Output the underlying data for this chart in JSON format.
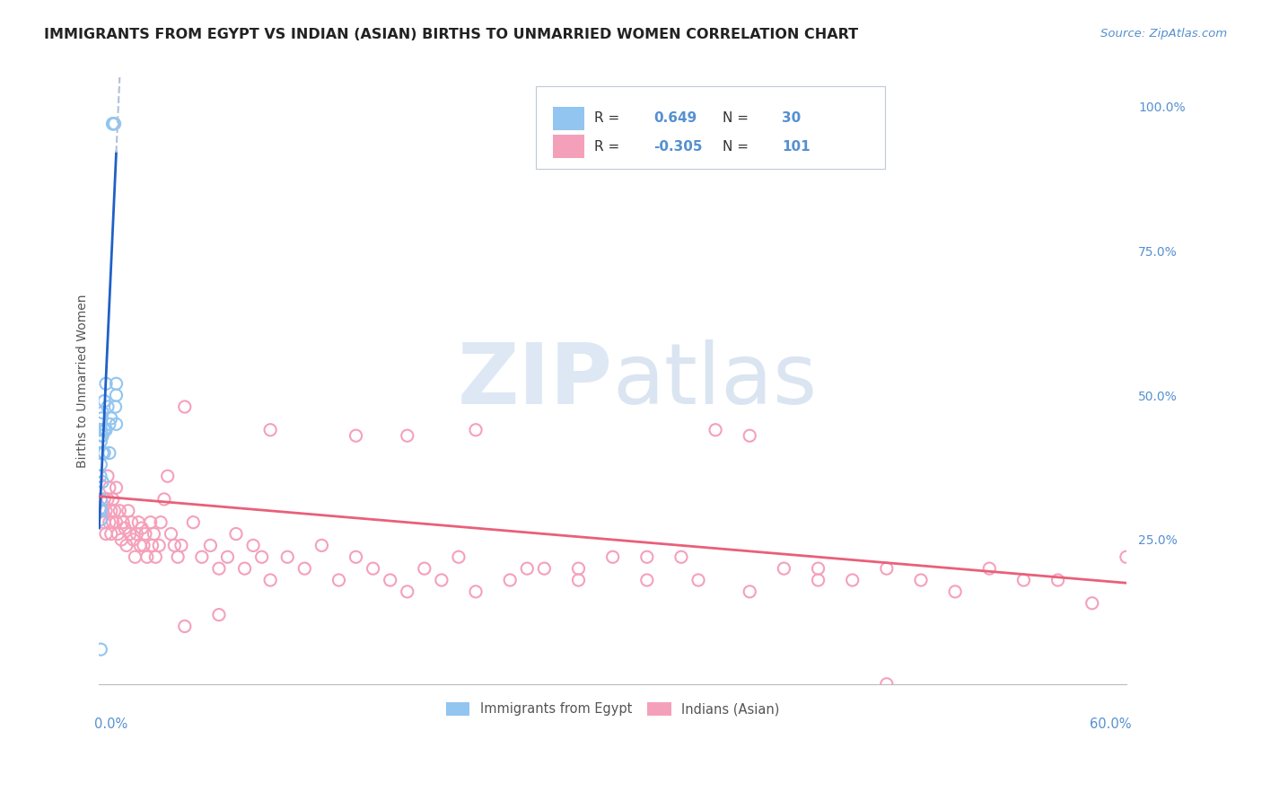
{
  "title": "IMMIGRANTS FROM EGYPT VS INDIAN (ASIAN) BIRTHS TO UNMARRIED WOMEN CORRELATION CHART",
  "source": "Source: ZipAtlas.com",
  "ylabel": "Births to Unmarried Women",
  "egypt_R": 0.649,
  "egypt_N": 30,
  "india_R": -0.305,
  "india_N": 101,
  "egypt_color": "#92c5f0",
  "india_color": "#f5a0bb",
  "egypt_line_color": "#2060c8",
  "india_line_color": "#e8607a",
  "egypt_dash_color": "#b0c0d8",
  "watermark_color": "#d0dff0",
  "bg_color": "#ffffff",
  "grid_color": "#dde4ee",
  "right_tick_color": "#5590d0",
  "title_color": "#222222",
  "source_color": "#5590d0",
  "ylabel_color": "#555555",
  "bottom_label_color": "#5590d0",
  "xlim": [
    0.0,
    0.6
  ],
  "ylim": [
    0.0,
    1.05
  ],
  "right_yticks": [
    0.0,
    0.25,
    0.5,
    0.75,
    1.0
  ],
  "right_yticklabels": [
    "",
    "25.0%",
    "50.0%",
    "75.0%",
    "100.0%"
  ],
  "egypt_x": [
    0.0008,
    0.0008,
    0.001,
    0.001,
    0.001,
    0.001,
    0.001,
    0.0012,
    0.0015,
    0.0015,
    0.002,
    0.002,
    0.002,
    0.002,
    0.003,
    0.003,
    0.003,
    0.004,
    0.004,
    0.005,
    0.006,
    0.006,
    0.007,
    0.008,
    0.008,
    0.009,
    0.0095,
    0.01,
    0.01,
    0.01
  ],
  "egypt_y": [
    0.305,
    0.36,
    0.285,
    0.3,
    0.32,
    0.38,
    0.42,
    0.44,
    0.43,
    0.46,
    0.35,
    0.4,
    0.43,
    0.47,
    0.4,
    0.44,
    0.49,
    0.44,
    0.52,
    0.48,
    0.4,
    0.45,
    0.46,
    0.97,
    0.97,
    0.97,
    0.48,
    0.45,
    0.5,
    0.52
  ],
  "egypt_outlier_x": [
    0.001
  ],
  "egypt_outlier_y": [
    0.06
  ],
  "india_x": [
    0.002,
    0.003,
    0.003,
    0.004,
    0.004,
    0.005,
    0.005,
    0.006,
    0.006,
    0.007,
    0.007,
    0.008,
    0.008,
    0.009,
    0.01,
    0.01,
    0.011,
    0.012,
    0.013,
    0.014,
    0.015,
    0.016,
    0.017,
    0.018,
    0.019,
    0.02,
    0.021,
    0.022,
    0.023,
    0.024,
    0.025,
    0.026,
    0.027,
    0.028,
    0.03,
    0.031,
    0.032,
    0.033,
    0.035,
    0.036,
    0.038,
    0.04,
    0.042,
    0.044,
    0.046,
    0.048,
    0.05,
    0.055,
    0.06,
    0.065,
    0.07,
    0.075,
    0.08,
    0.085,
    0.09,
    0.095,
    0.1,
    0.11,
    0.12,
    0.13,
    0.14,
    0.15,
    0.16,
    0.17,
    0.18,
    0.19,
    0.2,
    0.21,
    0.22,
    0.24,
    0.26,
    0.28,
    0.3,
    0.32,
    0.34,
    0.36,
    0.38,
    0.4,
    0.42,
    0.44,
    0.46,
    0.48,
    0.5,
    0.52,
    0.54,
    0.56,
    0.58,
    0.6,
    0.1,
    0.15,
    0.18,
    0.22,
    0.25,
    0.28,
    0.32,
    0.35,
    0.38,
    0.42,
    0.46,
    0.05,
    0.07
  ],
  "india_y": [
    0.3,
    0.28,
    0.32,
    0.26,
    0.3,
    0.32,
    0.36,
    0.28,
    0.34,
    0.3,
    0.26,
    0.28,
    0.32,
    0.3,
    0.28,
    0.34,
    0.26,
    0.3,
    0.25,
    0.28,
    0.27,
    0.24,
    0.3,
    0.26,
    0.28,
    0.25,
    0.22,
    0.26,
    0.28,
    0.24,
    0.27,
    0.24,
    0.26,
    0.22,
    0.28,
    0.24,
    0.26,
    0.22,
    0.24,
    0.28,
    0.32,
    0.36,
    0.26,
    0.24,
    0.22,
    0.24,
    0.48,
    0.28,
    0.22,
    0.24,
    0.2,
    0.22,
    0.26,
    0.2,
    0.24,
    0.22,
    0.18,
    0.22,
    0.2,
    0.24,
    0.18,
    0.22,
    0.2,
    0.18,
    0.16,
    0.2,
    0.18,
    0.22,
    0.16,
    0.18,
    0.2,
    0.18,
    0.22,
    0.18,
    0.22,
    0.44,
    0.43,
    0.2,
    0.18,
    0.18,
    0.2,
    0.18,
    0.16,
    0.2,
    0.18,
    0.18,
    0.14,
    0.22,
    0.44,
    0.43,
    0.43,
    0.44,
    0.2,
    0.2,
    0.22,
    0.18,
    0.16,
    0.2,
    0.0,
    0.1,
    0.12
  ]
}
